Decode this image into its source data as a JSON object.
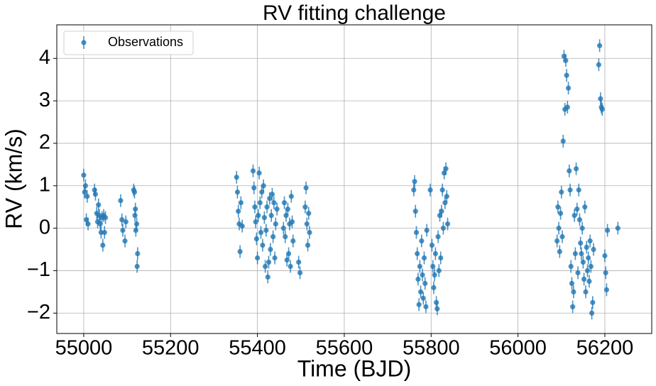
{
  "chart_data": {
    "type": "scatter",
    "title": "RV fitting challenge",
    "x_label": "Time (BJD)",
    "y_label": "RV (km/s)",
    "xlim": [
      54938,
      56308
    ],
    "ylim": [
      -2.48,
      4.79
    ],
    "xticks": [
      55000,
      55200,
      55400,
      55600,
      55800,
      56000,
      56200
    ],
    "yticks": [
      {
        "value": -2,
        "label": "−2"
      },
      {
        "value": -1,
        "label": "−1"
      },
      0,
      1,
      2,
      3,
      4
    ],
    "grid": true,
    "legend_position": "upper left",
    "series": [
      {
        "name": "Observations",
        "color": "#1f77b4",
        "yerr": 0.15,
        "x": [
          55000,
          55002,
          55004,
          55006,
          55008,
          55010,
          55025,
          55027,
          55030,
          55032,
          55034,
          55036,
          55038,
          55040,
          55042,
          55044,
          55046,
          55048,
          55050,
          55085,
          55088,
          55090,
          55095,
          55097,
          55115,
          55117,
          55118,
          55120,
          55122,
          55124,
          55123,
          55119,
          55352,
          55354,
          55356,
          55358,
          55360,
          55362,
          55365,
          55390,
          55392,
          55394,
          55396,
          55398,
          55400,
          55402,
          55404,
          55406,
          55408,
          55410,
          55412,
          55414,
          55416,
          55418,
          55420,
          55422,
          55424,
          55426,
          55428,
          55430,
          55432,
          55434,
          55436,
          55438,
          55440,
          55442,
          55445,
          55460,
          55462,
          55464,
          55466,
          55468,
          55470,
          55472,
          55474,
          55476,
          55478,
          55480,
          55482,
          55495,
          55498,
          55510,
          55512,
          55514,
          55516,
          55518,
          55520,
          55760,
          55762,
          55764,
          55766,
          55768,
          55770,
          55772,
          55774,
          55776,
          55778,
          55780,
          55782,
          55784,
          55786,
          55788,
          55790,
          55798,
          55802,
          55804,
          55806,
          55808,
          55810,
          55812,
          55814,
          55816,
          55818,
          55820,
          55822,
          55824,
          55826,
          55828,
          55830,
          55832,
          55834,
          55836,
          55838,
          56090,
          56092,
          56094,
          56096,
          56098,
          56100,
          56102,
          56104,
          56106,
          56108,
          56110,
          56112,
          56114,
          56116,
          56118,
          56120,
          56122,
          56124,
          56126,
          56128,
          56130,
          56132,
          56134,
          56136,
          56138,
          56140,
          56142,
          56144,
          56146,
          56148,
          56150,
          56152,
          56154,
          56156,
          56158,
          56160,
          56162,
          56164,
          56166,
          56168,
          56170,
          56172,
          56174,
          56186,
          56188,
          56190,
          56192,
          56194,
          56200,
          56202,
          56204,
          56206,
          56230
        ],
        "values": [
          1.25,
          0.85,
          1.0,
          0.2,
          0.75,
          0.1,
          0.9,
          0.8,
          0.35,
          0.15,
          0.55,
          0.3,
          0.1,
          -0.1,
          0.25,
          -0.4,
          0.3,
          -0.1,
          0.25,
          0.65,
          0.2,
          -0.05,
          -0.3,
          0.15,
          0.9,
          0.85,
          0.3,
          -0.05,
          0.1,
          -0.6,
          -0.9,
          0.45,
          1.2,
          0.85,
          0.4,
          0.1,
          -0.55,
          0.6,
          0.05,
          1.35,
          0.95,
          0.5,
          0.15,
          -0.25,
          -0.7,
          0.3,
          1.3,
          0.6,
          -0.1,
          0.85,
          -0.4,
          1.0,
          0.25,
          -0.9,
          -0.05,
          0.5,
          -1.15,
          -0.8,
          0.7,
          -0.5,
          0.3,
          0.8,
          -0.2,
          0.6,
          -0.7,
          0.1,
          0.45,
          0.0,
          0.6,
          -0.2,
          0.3,
          -0.75,
          0.45,
          -0.6,
          0.1,
          -0.9,
          0.75,
          0.15,
          -0.3,
          -0.8,
          -1.05,
          0.5,
          0.95,
          0.1,
          -0.4,
          0.35,
          -0.1,
          0.9,
          1.1,
          0.4,
          -0.1,
          -0.6,
          -1.2,
          -1.8,
          -0.9,
          -1.5,
          -0.3,
          -1.1,
          -1.65,
          -0.7,
          -1.3,
          -1.85,
          -0.05,
          0.9,
          -0.4,
          -0.9,
          -1.4,
          -1.1,
          -0.6,
          -1.75,
          -1.9,
          -0.2,
          -1.0,
          0.3,
          -0.7,
          0.4,
          0.9,
          0.0,
          1.3,
          0.6,
          1.4,
          0.75,
          0.1,
          -0.3,
          0.5,
          0.0,
          -0.55,
          0.35,
          0.85,
          -0.2,
          2.05,
          4.05,
          2.8,
          3.95,
          3.6,
          2.85,
          3.3,
          1.35,
          0.9,
          -0.9,
          -1.3,
          -1.85,
          -1.5,
          0.3,
          -0.6,
          1.4,
          0.45,
          -1.05,
          0.9,
          0.2,
          -0.35,
          -0.6,
          0.0,
          -0.8,
          -1.2,
          0.5,
          -1.5,
          -0.45,
          -1.0,
          -0.7,
          -1.25,
          -0.3,
          -0.9,
          -2.0,
          -1.75,
          -0.5,
          3.85,
          4.3,
          3.05,
          2.85,
          2.8,
          -0.65,
          -1.05,
          -1.45,
          -0.05,
          0.0
        ]
      }
    ]
  }
}
